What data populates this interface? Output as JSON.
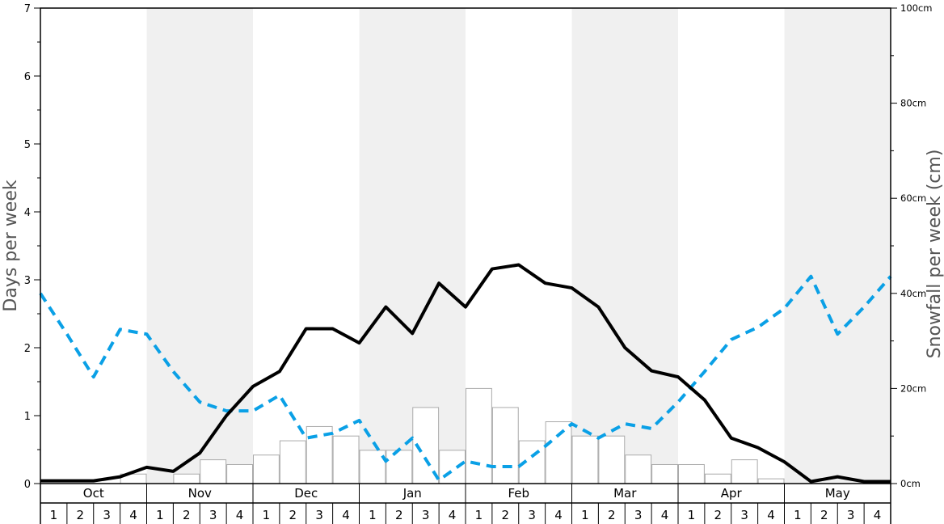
{
  "chart_data": {
    "type": "bar",
    "title": "",
    "ylabel_left": "Days per week",
    "ylabel_right": "Snowfall per week (cm)",
    "ylim_left": [
      0,
      7
    ],
    "ylim_right": [
      0,
      100
    ],
    "left_ticks": [
      "0",
      "1",
      "2",
      "3",
      "4",
      "5",
      "6",
      "7"
    ],
    "right_ticks": [
      "0cm",
      "20cm",
      "40cm",
      "60cm",
      "80cm",
      "100cm"
    ],
    "months": [
      "Oct",
      "Nov",
      "Dec",
      "Jan",
      "Feb",
      "Mar",
      "Apr",
      "May"
    ],
    "week_labels": [
      "1",
      "2",
      "3",
      "4"
    ],
    "shaded_months": [
      "Nov",
      "Jan",
      "Mar",
      "May"
    ],
    "shade_color": "#f0f0f0",
    "series": [
      {
        "name": "",
        "type": "bar",
        "axis": "right",
        "style": "white bars with grey outline",
        "color": "#ffffff",
        "values": [
          0,
          0,
          0,
          2,
          0,
          2,
          5,
          4,
          6,
          9,
          12,
          10,
          7,
          7,
          16,
          7,
          20,
          16,
          9,
          13,
          10,
          10,
          6,
          4,
          4,
          2,
          5,
          1,
          0,
          0,
          0,
          0
        ]
      },
      {
        "name": "",
        "type": "line",
        "axis": "left",
        "style": "solid",
        "color": "#000000",
        "values": [
          0.04,
          0.04,
          0.04,
          0.1,
          0.24,
          0.18,
          0.45,
          1.0,
          1.43,
          1.65,
          2.28,
          2.28,
          2.07,
          2.6,
          2.21,
          2.95,
          2.6,
          3.16,
          3.22,
          2.95,
          2.88,
          2.6,
          2.0,
          1.66,
          1.57,
          1.23,
          0.67,
          0.53,
          0.32,
          0.03,
          0.1,
          0.03,
          0.03
        ]
      },
      {
        "name": "",
        "type": "line",
        "axis": "left",
        "style": "dashed",
        "color": "#0aa0e6",
        "values": [
          2.8,
          2.2,
          1.57,
          2.27,
          2.2,
          1.65,
          1.2,
          1.07,
          1.07,
          1.3,
          0.67,
          0.74,
          0.93,
          0.33,
          0.67,
          0.05,
          0.33,
          0.25,
          0.25,
          0.55,
          0.88,
          0.67,
          0.88,
          0.81,
          1.2,
          1.65,
          2.12,
          2.3,
          2.58,
          3.05,
          2.2,
          2.6,
          3.05
        ]
      }
    ]
  }
}
